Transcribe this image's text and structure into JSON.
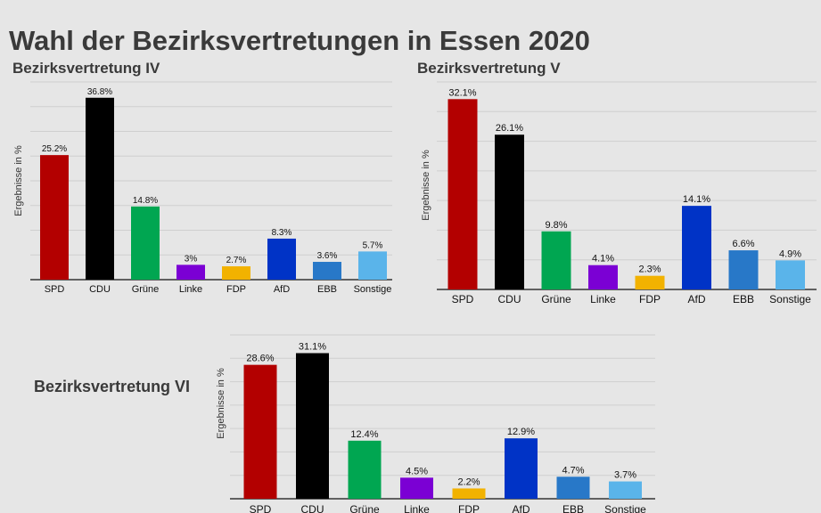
{
  "page": {
    "title": "Wahl der Bezirksvertretungen in Essen 2020"
  },
  "chart_data": [
    {
      "type": "bar",
      "title": "Bezirksvertretung IV",
      "xlabel": "",
      "ylabel": "Ergebnisse in %",
      "ylim": [
        0,
        40
      ],
      "categories": [
        "SPD",
        "CDU",
        "Grüne",
        "Linke",
        "FDP",
        "AfD",
        "EBB",
        "Sonstige"
      ],
      "values": [
        25.2,
        36.8,
        14.8,
        3,
        2.7,
        8.3,
        3.6,
        5.7
      ],
      "value_labels": [
        "25.2%",
        "36.8%",
        "14.8%",
        "3%",
        "2.7%",
        "8.3%",
        "3.6%",
        "5.7%"
      ],
      "colors": [
        "#b30000",
        "#000000",
        "#00a651",
        "#7b00d4",
        "#f2b200",
        "#0033c6",
        "#2878c8",
        "#5ab4ea"
      ]
    },
    {
      "type": "bar",
      "title": "Bezirksvertretung V",
      "xlabel": "",
      "ylabel": "Ergebnisse in %",
      "ylim": [
        0,
        35
      ],
      "categories": [
        "SPD",
        "CDU",
        "Grüne",
        "Linke",
        "FDP",
        "AfD",
        "EBB",
        "Sonstige"
      ],
      "values": [
        32.1,
        26.1,
        9.8,
        4.1,
        2.3,
        14.1,
        6.6,
        4.9
      ],
      "value_labels": [
        "32.1%",
        "26.1%",
        "9.8%",
        "4.1%",
        "2.3%",
        "14.1%",
        "6.6%",
        "4.9%"
      ],
      "colors": [
        "#b30000",
        "#000000",
        "#00a651",
        "#7b00d4",
        "#f2b200",
        "#0033c6",
        "#2878c8",
        "#5ab4ea"
      ]
    },
    {
      "type": "bar",
      "title": "Bezirksvertretung VI",
      "xlabel": "",
      "ylabel": "Ergebnisse in %",
      "ylim": [
        0,
        35
      ],
      "categories": [
        "SPD",
        "CDU",
        "Grüne",
        "Linke",
        "FDP",
        "AfD",
        "EBB",
        "Sonstige"
      ],
      "values": [
        28.6,
        31.1,
        12.4,
        4.5,
        2.2,
        12.9,
        4.7,
        3.7
      ],
      "value_labels": [
        "28.6%",
        "31.1%",
        "12.4%",
        "4.5%",
        "2.2%",
        "12.9%",
        "4.7%",
        "3.7%"
      ],
      "colors": [
        "#b30000",
        "#000000",
        "#00a651",
        "#7b00d4",
        "#f2b200",
        "#0033c6",
        "#2878c8",
        "#5ab4ea"
      ]
    }
  ]
}
